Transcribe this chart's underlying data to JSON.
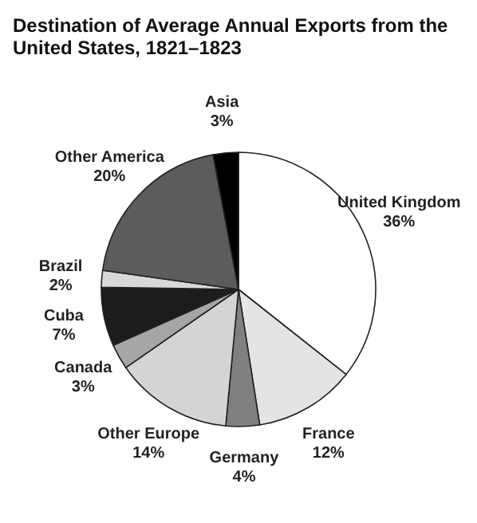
{
  "chart_data": {
    "type": "pie",
    "title": [
      "Destination of Average Annual Exports from the",
      "United States, 1821–1823"
    ],
    "categories": [
      "United Kingdom",
      "France",
      "Germany",
      "Other Europe",
      "Canada",
      "Cuba",
      "Brazil",
      "Other America",
      "Asia"
    ],
    "values": [
      36,
      12,
      4,
      14,
      3,
      7,
      2,
      20,
      3
    ],
    "value_labels": [
      "36%",
      "12%",
      "4%",
      "14%",
      "3%",
      "7%",
      "2%",
      "20%",
      "3%"
    ],
    "colors": [
      "#ffffff",
      "#e4e4e4",
      "#808080",
      "#d4d4d4",
      "#a6a6a6",
      "#1c1c1c",
      "#d8d8d8",
      "#5c5c5c",
      "#000000"
    ],
    "legend": false
  }
}
